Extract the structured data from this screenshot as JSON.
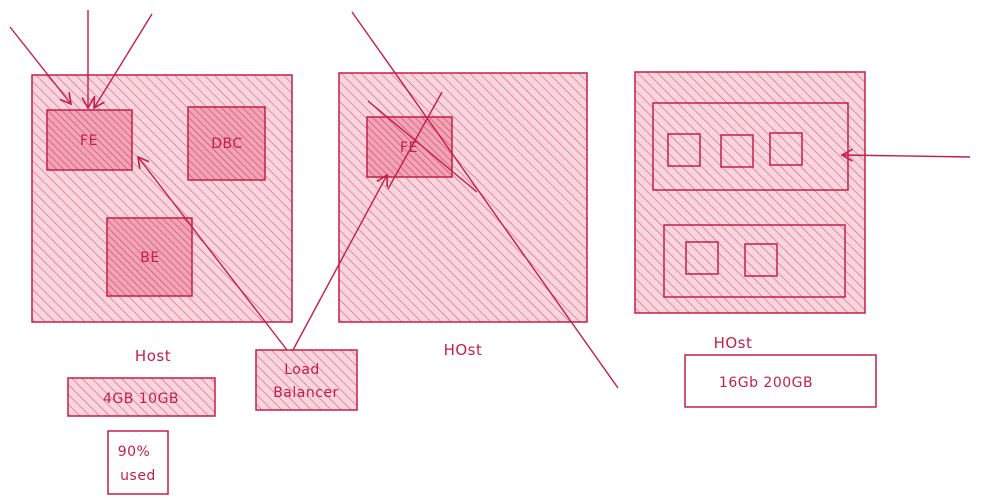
{
  "colors": {
    "stroke": "#c41e4a",
    "hatch": "#e85a7a",
    "fill_light": "#f7c9d3",
    "fill_mid": "#ee97aa",
    "text": "#c41e4a"
  },
  "hosts": [
    {
      "label": "Host",
      "components": [
        "FE",
        "DBC",
        "BE"
      ],
      "specs": "4GB 10GB",
      "usage": {
        "line1": "90%",
        "line2": "used"
      }
    },
    {
      "label": "HOst",
      "components": [
        "FE"
      ]
    },
    {
      "label": "HOst",
      "specs": "16Gb 200GB"
    }
  ],
  "load_balancer": {
    "line1": "Load",
    "line2": "Balancer"
  }
}
